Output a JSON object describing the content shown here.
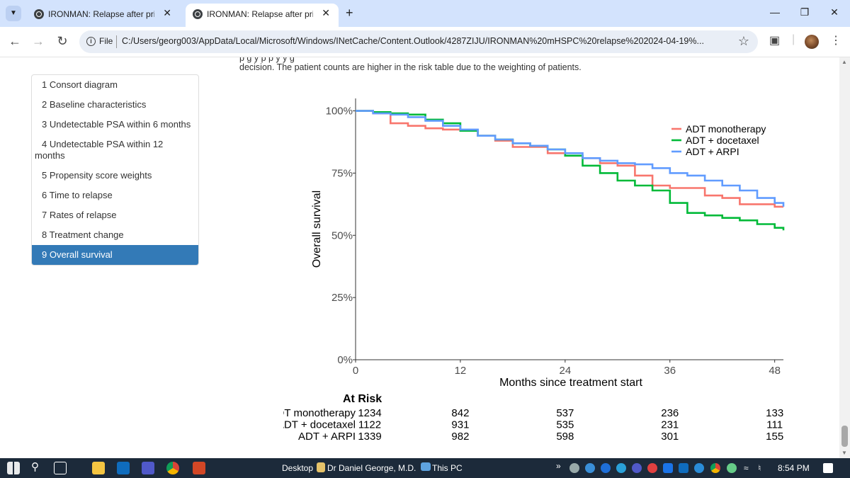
{
  "browser": {
    "tabs": [
      {
        "title": "IRONMAN: Relapse after prima"
      },
      {
        "title": "IRONMAN: Relapse after prima"
      }
    ],
    "address": {
      "scheme_label": "File",
      "url": "C:/Users/georg003/AppData/Local/Microsoft/Windows/INetCache/Content.Outlook/4287ZIJU/IRONMAN%20mHSPC%20relapse%202024-04-19%..."
    }
  },
  "page": {
    "intro_line_partial": "p                                           g      y  p p                y                       y                                                    g",
    "intro_line": "decision. The patient counts are higher in the risk table due to the weighting of patients.",
    "toc": [
      {
        "label": "1 Consort diagram"
      },
      {
        "label": "2 Baseline characteristics"
      },
      {
        "label": "3 Undetectable PSA within 6 months"
      },
      {
        "label": "4 Undetectable PSA within 12",
        "label2": "months"
      },
      {
        "label": "5 Propensity score weights"
      },
      {
        "label": "6 Time to relapse"
      },
      {
        "label": "7 Rates of relapse"
      },
      {
        "label": "8 Treatment change"
      },
      {
        "label": "9 Overall survival"
      }
    ]
  },
  "chart_data": {
    "type": "line",
    "xlabel": "Months since treatment start",
    "ylabel": "Overall survival",
    "xlim": [
      0,
      49
    ],
    "ylim": [
      0,
      1.05
    ],
    "x_ticks": [
      0,
      12,
      24,
      36,
      48
    ],
    "y_ticks": [
      "0%",
      "25%",
      "50%",
      "75%",
      "100%"
    ],
    "legend_position": "right",
    "series": [
      {
        "name": "ADT monotherapy",
        "color": "#f8766d",
        "x": [
          0,
          2,
          4,
          6,
          8,
          10,
          12,
          14,
          16,
          18,
          20,
          22,
          24,
          26,
          28,
          30,
          32,
          34,
          36,
          38,
          40,
          42,
          44,
          46,
          48,
          49
        ],
        "y": [
          1.0,
          0.99,
          0.95,
          0.94,
          0.93,
          0.925,
          0.92,
          0.9,
          0.88,
          0.855,
          0.855,
          0.83,
          0.82,
          0.81,
          0.79,
          0.78,
          0.74,
          0.7,
          0.69,
          0.69,
          0.66,
          0.65,
          0.625,
          0.625,
          0.615,
          0.615
        ]
      },
      {
        "name": "ADT + docetaxel",
        "color": "#00ba38",
        "x": [
          0,
          2,
          4,
          6,
          8,
          10,
          12,
          14,
          16,
          18,
          20,
          22,
          24,
          26,
          28,
          30,
          32,
          34,
          36,
          38,
          40,
          42,
          44,
          46,
          48,
          49
        ],
        "y": [
          1.0,
          0.995,
          0.99,
          0.985,
          0.965,
          0.95,
          0.92,
          0.9,
          0.885,
          0.87,
          0.86,
          0.845,
          0.82,
          0.78,
          0.75,
          0.72,
          0.7,
          0.68,
          0.63,
          0.59,
          0.58,
          0.57,
          0.56,
          0.545,
          0.53,
          0.52
        ]
      },
      {
        "name": "ADT + ARPI",
        "color": "#619cff",
        "x": [
          0,
          2,
          4,
          6,
          8,
          10,
          12,
          14,
          16,
          18,
          20,
          22,
          24,
          26,
          28,
          30,
          32,
          34,
          36,
          38,
          40,
          42,
          44,
          46,
          48,
          49
        ],
        "y": [
          1.0,
          0.99,
          0.985,
          0.975,
          0.96,
          0.94,
          0.925,
          0.9,
          0.885,
          0.87,
          0.86,
          0.845,
          0.83,
          0.81,
          0.8,
          0.79,
          0.785,
          0.77,
          0.75,
          0.74,
          0.72,
          0.7,
          0.68,
          0.65,
          0.63,
          0.615
        ]
      }
    ],
    "risk_table": {
      "title": "At Risk",
      "times": [
        0,
        12,
        24,
        36,
        48
      ],
      "rows": [
        {
          "label": "ADT monotherapy",
          "values": [
            1234,
            842,
            537,
            236,
            133
          ]
        },
        {
          "label": "ADT + docetaxel",
          "values": [
            1122,
            931,
            535,
            231,
            111
          ]
        },
        {
          "label": "ADT + ARPI",
          "values": [
            1339,
            982,
            598,
            301,
            155
          ]
        }
      ]
    }
  },
  "taskbar": {
    "desktop_label": "Desktop",
    "user_label": "Dr Daniel George, M.D.",
    "thispc_label": "This PC",
    "clock": "8:54 PM"
  }
}
